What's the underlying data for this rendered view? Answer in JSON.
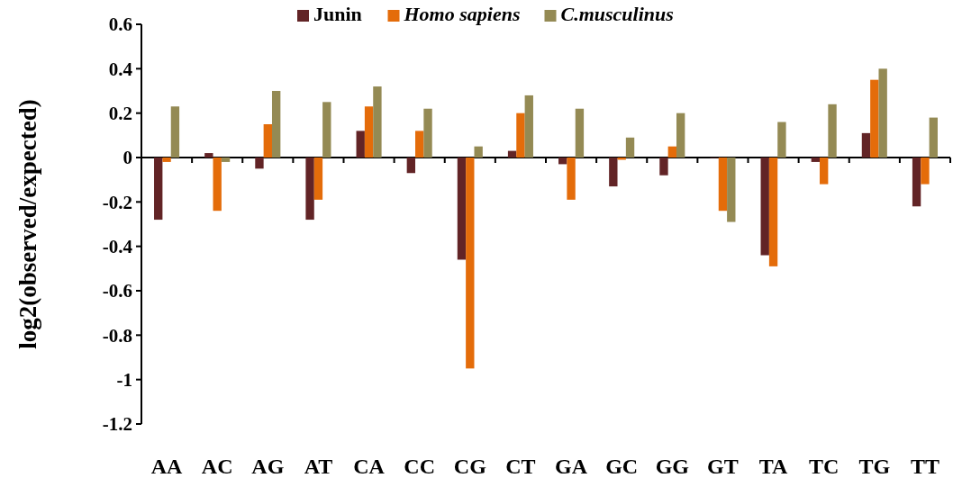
{
  "chart_data": {
    "type": "bar",
    "ylabel": "log2(observed/expected)",
    "categories": [
      "AA",
      "AC",
      "AG",
      "AT",
      "CA",
      "CC",
      "CG",
      "CT",
      "GA",
      "GC",
      "GG",
      "GT",
      "TA",
      "TC",
      "TG",
      "TT"
    ],
    "series": [
      {
        "name": "Junin",
        "color": "#622426",
        "values": [
          -0.28,
          0.02,
          -0.05,
          -0.28,
          0.12,
          -0.07,
          -0.46,
          0.03,
          -0.03,
          -0.13,
          -0.08,
          0,
          -0.44,
          -0.02,
          0.11,
          -0.22
        ]
      },
      {
        "name": "Homo sapiens",
        "color": "#e46c0a",
        "values": [
          -0.02,
          -0.24,
          0.15,
          -0.19,
          0.23,
          0.12,
          -0.95,
          0.2,
          -0.19,
          -0.01,
          0.05,
          -0.24,
          -0.49,
          -0.12,
          0.35,
          -0.12
        ]
      },
      {
        "name": "C.musculinus",
        "color": "#948a54",
        "values": [
          0.23,
          -0.02,
          0.3,
          0.25,
          0.32,
          0.22,
          0.05,
          0.28,
          0.22,
          0.09,
          0.2,
          -0.29,
          0.16,
          0.24,
          0.4,
          0.18
        ]
      }
    ],
    "ylim": [
      -1.2,
      0.6
    ],
    "yticks": [
      -1.2,
      -1,
      -0.8,
      -0.6,
      -0.4,
      -0.2,
      0,
      0.2,
      0.4,
      0.6
    ],
    "legend": "top"
  }
}
